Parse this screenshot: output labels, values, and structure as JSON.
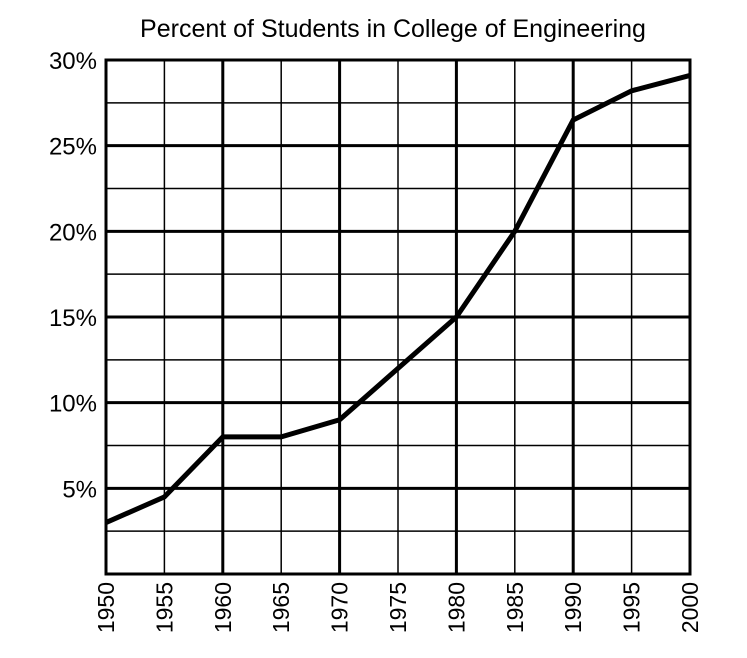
{
  "chart_data": {
    "type": "line",
    "title": "Percent of Students in College of Engineering",
    "xlabel": "",
    "ylabel": "",
    "x": [
      1950,
      1955,
      1960,
      1965,
      1970,
      1975,
      1980,
      1985,
      1990,
      1995,
      2000
    ],
    "y_tick_labels": [
      "5%",
      "10%",
      "15%",
      "20%",
      "25%",
      "30%"
    ],
    "y_tick_values": [
      5,
      10,
      15,
      20,
      25,
      30
    ],
    "x_tick_labels": [
      "1950",
      "1955",
      "1960",
      "1965",
      "1970",
      "1975",
      "1980",
      "1985",
      "1990",
      "1995",
      "2000"
    ],
    "series": [
      {
        "values": [
          3,
          4.5,
          8,
          8,
          9,
          12,
          15,
          20,
          26.5,
          28.2,
          29.1
        ]
      }
    ],
    "xlim": [
      1950,
      2000
    ],
    "ylim": [
      0,
      30
    ],
    "grid": true,
    "line_color": "#000000"
  }
}
